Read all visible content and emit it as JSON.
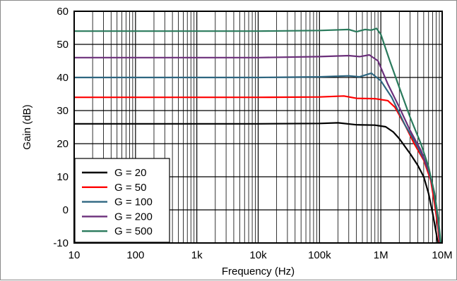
{
  "chart_data": {
    "type": "line",
    "xscale": "log",
    "xlabel": "Frequency (Hz)",
    "ylabel": "Gain (dB)",
    "xlim": [
      10,
      10000000
    ],
    "ylim": [
      -10,
      60
    ],
    "x_tick_labels": [
      {
        "value": 10,
        "label": "10"
      },
      {
        "value": 100,
        "label": "100"
      },
      {
        "value": 1000,
        "label": "1k"
      },
      {
        "value": 10000,
        "label": "10k"
      },
      {
        "value": 100000,
        "label": "100k"
      },
      {
        "value": 1000000,
        "label": "1M"
      },
      {
        "value": 10000000,
        "label": "10M"
      }
    ],
    "y_ticks": [
      -10,
      0,
      10,
      20,
      30,
      40,
      50,
      60
    ],
    "grid": true,
    "legend_position": "bottom-left",
    "series": [
      {
        "name": "G = 20",
        "color": "#000000",
        "points": [
          [
            10,
            26
          ],
          [
            10000,
            26
          ],
          [
            100000,
            26.1
          ],
          [
            200000,
            26.3
          ],
          [
            400000,
            25.7
          ],
          [
            800000,
            25.6
          ],
          [
            1200000,
            25.1
          ],
          [
            1600000,
            23.5
          ],
          [
            2000000,
            21.5
          ],
          [
            3000000,
            17
          ],
          [
            4000000,
            13.5
          ],
          [
            5000000,
            10
          ],
          [
            6000000,
            5
          ],
          [
            7000000,
            -1
          ],
          [
            8000000,
            -7
          ],
          [
            8500000,
            -10
          ]
        ]
      },
      {
        "name": "G = 50",
        "color": "#ff0000",
        "points": [
          [
            10,
            34
          ],
          [
            10000,
            34
          ],
          [
            100000,
            34.1
          ],
          [
            250000,
            34.4
          ],
          [
            400000,
            33.7
          ],
          [
            800000,
            33.6
          ],
          [
            1300000,
            33
          ],
          [
            1700000,
            31
          ],
          [
            2500000,
            25.5
          ],
          [
            3500000,
            20
          ],
          [
            5000000,
            15
          ],
          [
            6500000,
            9
          ],
          [
            7500000,
            2
          ],
          [
            8500000,
            -5
          ],
          [
            9000000,
            -10
          ]
        ]
      },
      {
        "name": "G = 100",
        "color": "#2e6680",
        "points": [
          [
            10,
            40
          ],
          [
            10000,
            40
          ],
          [
            100000,
            40.2
          ],
          [
            300000,
            40.5
          ],
          [
            450000,
            40.2
          ],
          [
            700000,
            41.3
          ],
          [
            1000000,
            39
          ],
          [
            1500000,
            34
          ],
          [
            2500000,
            25.5
          ],
          [
            3500000,
            21
          ],
          [
            5000000,
            15.5
          ],
          [
            6500000,
            10
          ],
          [
            7500000,
            4
          ],
          [
            8500000,
            -3
          ],
          [
            9200000,
            -10
          ]
        ]
      },
      {
        "name": "G = 200",
        "color": "#6b2f7a",
        "points": [
          [
            10,
            46
          ],
          [
            10000,
            46
          ],
          [
            100000,
            46.3
          ],
          [
            300000,
            46.6
          ],
          [
            450000,
            46.3
          ],
          [
            650000,
            46.8
          ],
          [
            900000,
            45
          ],
          [
            1300000,
            38
          ],
          [
            2000000,
            31
          ],
          [
            3000000,
            24
          ],
          [
            4500000,
            18
          ],
          [
            6000000,
            12
          ],
          [
            7500000,
            5
          ],
          [
            8500000,
            -2
          ],
          [
            9300000,
            -10
          ]
        ]
      },
      {
        "name": "G = 500",
        "color": "#2a7a5c",
        "points": [
          [
            10,
            54
          ],
          [
            10000,
            54
          ],
          [
            100000,
            54.2
          ],
          [
            300000,
            54.5
          ],
          [
            400000,
            53.8
          ],
          [
            550000,
            54.5
          ],
          [
            700000,
            54.3
          ],
          [
            850000,
            54.8
          ],
          [
            1000000,
            53
          ],
          [
            1400000,
            45
          ],
          [
            2000000,
            37
          ],
          [
            3000000,
            28
          ],
          [
            4500000,
            20
          ],
          [
            6000000,
            13
          ],
          [
            7500000,
            5
          ],
          [
            8700000,
            -3
          ],
          [
            9500000,
            -10
          ]
        ]
      }
    ]
  }
}
